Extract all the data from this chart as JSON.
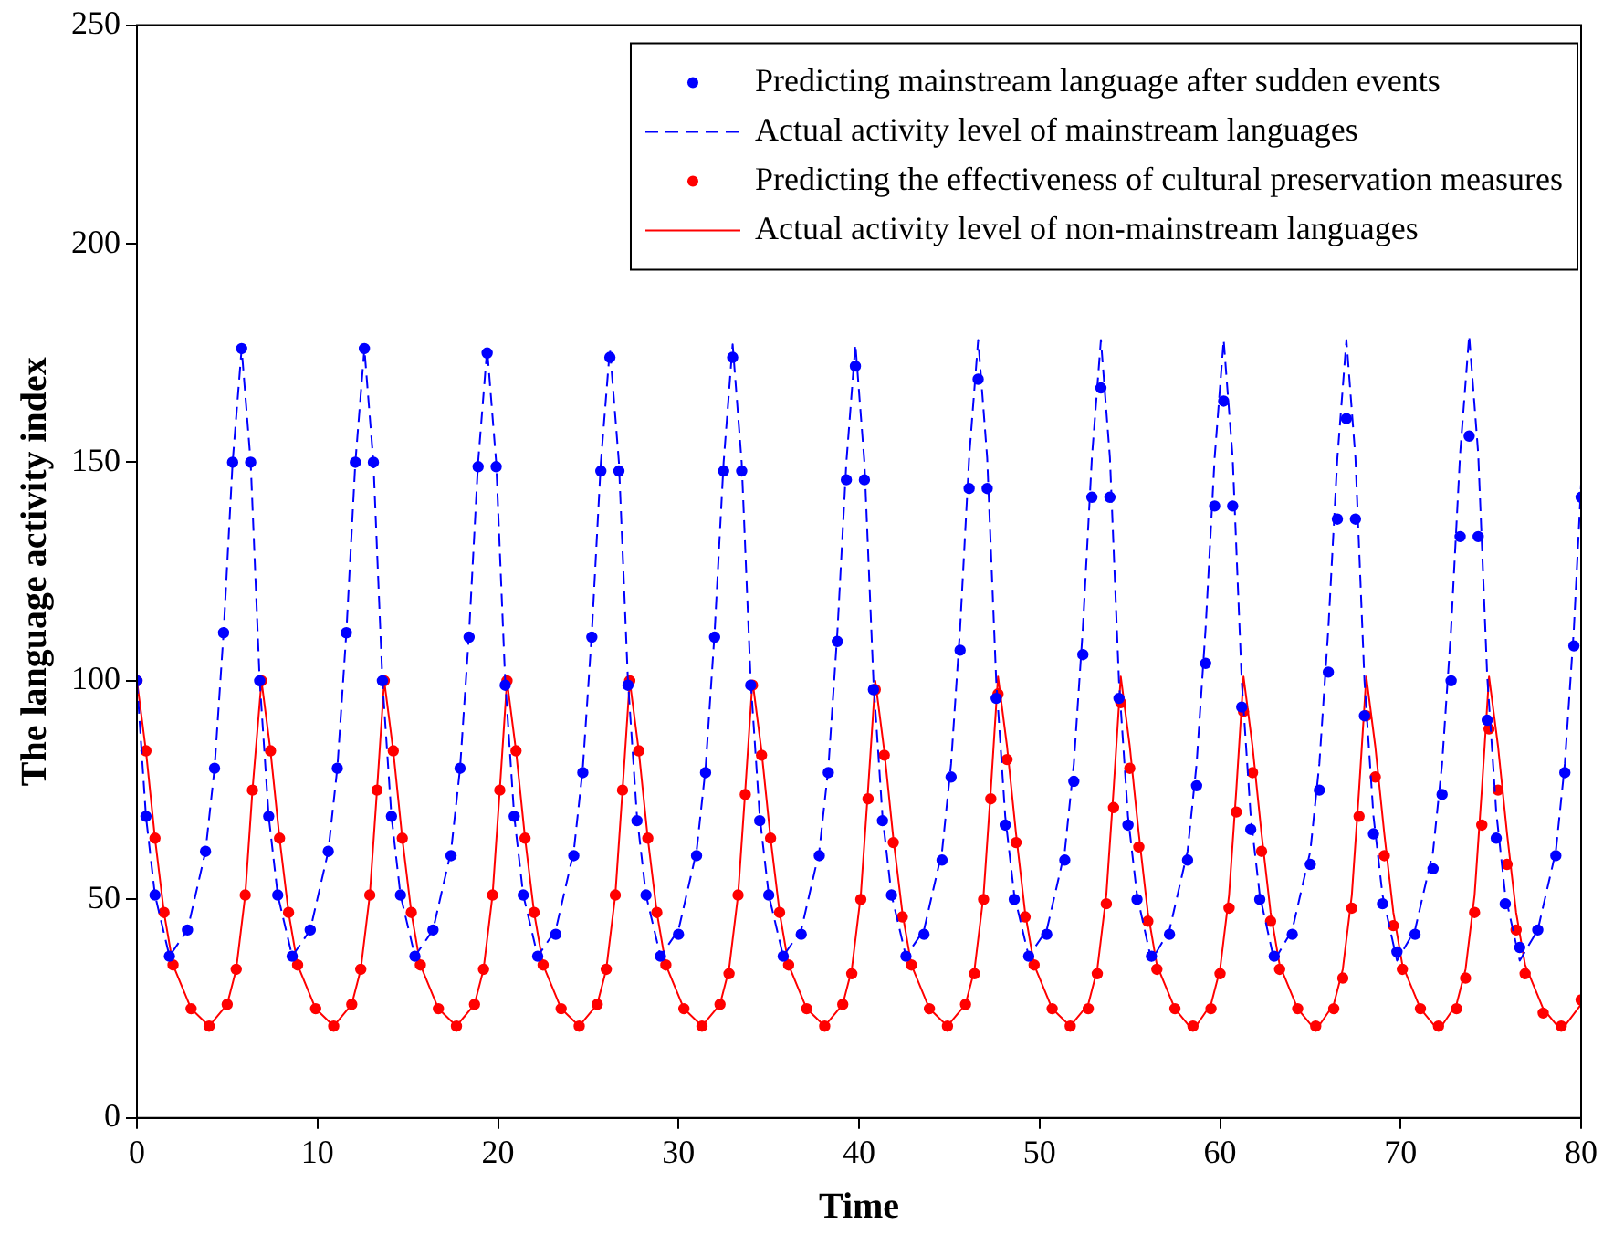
{
  "chart_data": {
    "type": "scatter",
    "xlabel": "Time",
    "ylabel": "The language activity index",
    "xlim": [
      0,
      80
    ],
    "ylim": [
      0,
      250
    ],
    "xticks": [
      0,
      10,
      20,
      30,
      40,
      50,
      60,
      70,
      80
    ],
    "yticks": [
      0,
      50,
      100,
      150,
      200,
      250
    ],
    "grid": false,
    "legend": "top right",
    "series": [
      {
        "name": "Predicting mainstream language after sudden events",
        "marker": "circle",
        "color": "#0000ff",
        "x": [
          0,
          0.5,
          1,
          1.8,
          2.8,
          3.8,
          4.3,
          4.8,
          5.3,
          5.8,
          6.3,
          6.8,
          7.3,
          7.8,
          8.6,
          9.6,
          10.6,
          11.1,
          11.6,
          12.1,
          12.6,
          13.1,
          13.6,
          14.1,
          14.6,
          15.4,
          16.4,
          17.4,
          17.9,
          18.4,
          18.9,
          19.4,
          19.9,
          20.4,
          20.9,
          21.4,
          22.2,
          23.2,
          24.2,
          24.7,
          25.2,
          25.7,
          26.2,
          26.7,
          27.2,
          27.7,
          28.2,
          29,
          30,
          31,
          31.5,
          32,
          32.5,
          33,
          33.5,
          34,
          34.5,
          35,
          35.8,
          36.8,
          37.8,
          38.3,
          38.8,
          39.3,
          39.8,
          40.3,
          40.8,
          41.3,
          41.8,
          42.6,
          43.6,
          44.6,
          45.1,
          45.6,
          46.1,
          46.6,
          47.1,
          47.6,
          48.1,
          48.6,
          49.4,
          50.4,
          51.4,
          51.9,
          52.4,
          52.9,
          53.4,
          53.9,
          54.4,
          54.9,
          55.4,
          56.2,
          57.2,
          58.2,
          58.7,
          59.2,
          59.7,
          60.2,
          60.7,
          61.2,
          61.7,
          62.2,
          63,
          64,
          65,
          65.5,
          66,
          66.5,
          67,
          67.5,
          68,
          68.5,
          69,
          69.8,
          70.8,
          71.8,
          72.3,
          72.8,
          73.3,
          73.8,
          74.3,
          74.8,
          75.3,
          75.8,
          76.6,
          77.6,
          78.6,
          79.1,
          79.6,
          80
        ],
        "values": [
          100,
          69,
          51,
          37,
          43,
          61,
          80,
          111,
          150,
          176,
          150,
          100,
          69,
          51,
          37,
          43,
          61,
          80,
          111,
          150,
          176,
          150,
          100,
          69,
          51,
          37,
          43,
          60,
          80,
          110,
          149,
          175,
          149,
          99,
          69,
          51,
          37,
          42,
          60,
          79,
          110,
          148,
          174,
          148,
          99,
          68,
          51,
          37,
          42,
          60,
          79,
          110,
          148,
          174,
          148,
          99,
          68,
          51,
          37,
          42,
          60,
          79,
          109,
          146,
          172,
          146,
          98,
          68,
          51,
          37,
          42,
          59,
          78,
          107,
          144,
          169,
          144,
          96,
          67,
          50,
          37,
          42,
          59,
          77,
          106,
          142,
          167,
          142,
          96,
          67,
          50,
          37,
          42,
          59,
          76,
          104,
          140,
          164,
          140,
          94,
          66,
          50,
          37,
          42,
          58,
          75,
          102,
          137,
          160,
          137,
          92,
          65,
          49,
          38,
          42,
          57,
          74,
          100,
          133,
          156,
          133,
          91,
          64,
          49,
          39,
          43,
          60,
          79,
          108,
          142
        ]
      },
      {
        "name": "Actual activity level of mainstream languages",
        "type": "line",
        "line_style": "dashed",
        "color": "#0000ff",
        "x": [
          0,
          0.5,
          1,
          1.8,
          2.8,
          3.8,
          4.3,
          4.8,
          5.3,
          5.8,
          6.3,
          6.8,
          7.3,
          7.8,
          8.6,
          9.6,
          10.6,
          11.1,
          11.6,
          12.1,
          12.6,
          13.1,
          13.6,
          14.1,
          14.6,
          15.4,
          16.4,
          17.4,
          17.9,
          18.4,
          18.9,
          19.4,
          19.9,
          20.4,
          20.9,
          21.4,
          22.2,
          23.2,
          24.2,
          24.7,
          25.2,
          25.7,
          26.2,
          26.7,
          27.2,
          27.7,
          28.2,
          29,
          30,
          31,
          31.5,
          32,
          32.5,
          33,
          33.5,
          34,
          34.5,
          35,
          35.8,
          36.8,
          37.8,
          38.3,
          38.8,
          39.3,
          39.8,
          40.3,
          40.8,
          41.3,
          41.8,
          42.6,
          43.6,
          44.6,
          45.1,
          45.6,
          46.1,
          46.6,
          47.1,
          47.6,
          48.1,
          48.6,
          49.4,
          50.4,
          51.4,
          51.9,
          52.4,
          52.9,
          53.4,
          53.9,
          54.4,
          54.9,
          55.4,
          56.2,
          57.2,
          58.2,
          58.7,
          59.2,
          59.7,
          60.2,
          60.7,
          61.2,
          61.7,
          62.2,
          63,
          64,
          65,
          65.5,
          66,
          66.5,
          67,
          67.5,
          68,
          68.5,
          69,
          69.8,
          70.8,
          71.8,
          72.3,
          72.8,
          73.3,
          73.8,
          74.3,
          74.8,
          75.3,
          75.8,
          76.6,
          77.6,
          78.6,
          79.1,
          79.6,
          80
        ],
        "values": [
          100,
          69,
          51,
          37,
          43,
          61,
          80,
          111,
          150,
          176,
          150,
          100,
          69,
          51,
          37,
          43,
          61,
          80,
          111,
          150,
          176,
          150,
          100,
          69,
          51,
          37,
          43,
          61,
          80,
          111,
          150,
          176,
          150,
          100,
          69,
          51,
          37,
          43,
          61,
          80,
          111,
          150,
          176,
          150,
          100,
          69,
          51,
          37,
          43,
          61,
          80,
          111,
          150,
          177,
          150,
          100,
          69,
          51,
          37,
          43,
          61,
          80,
          111,
          150,
          177,
          150,
          100,
          69,
          51,
          37,
          43,
          61,
          81,
          112,
          151,
          178,
          151,
          100,
          69,
          51,
          37,
          43,
          61,
          81,
          112,
          151,
          178,
          151,
          100,
          69,
          51,
          36,
          43,
          61,
          81,
          112,
          151,
          178,
          151,
          100,
          69,
          51,
          36,
          43,
          61,
          81,
          112,
          151,
          178,
          151,
          100,
          69,
          51,
          36,
          43,
          61,
          81,
          112,
          152,
          179,
          152,
          101,
          70,
          51,
          36,
          43,
          61,
          81,
          112,
          145
        ]
      },
      {
        "name": "Predicting the effectiveness of cultural preservation measures",
        "marker": "circle",
        "color": "#ff0000",
        "x": [
          0,
          0.5,
          1,
          1.5,
          2,
          3,
          4,
          5,
          5.5,
          6,
          6.4,
          6.9,
          7.4,
          7.9,
          8.4,
          8.9,
          9.9,
          10.9,
          11.9,
          12.4,
          12.9,
          13.3,
          13.7,
          14.2,
          14.7,
          15.2,
          15.7,
          16.7,
          17.7,
          18.7,
          19.2,
          19.7,
          20.1,
          20.5,
          21,
          21.5,
          22,
          22.5,
          23.5,
          24.5,
          25.5,
          26,
          26.5,
          26.9,
          27.3,
          27.8,
          28.3,
          28.8,
          29.3,
          30.3,
          31.3,
          32.3,
          32.8,
          33.3,
          33.7,
          34.1,
          34.6,
          35.1,
          35.6,
          36.1,
          37.1,
          38.1,
          39.1,
          39.6,
          40.1,
          40.5,
          40.9,
          41.4,
          41.9,
          42.4,
          42.9,
          43.9,
          44.9,
          45.9,
          46.4,
          46.9,
          47.3,
          47.7,
          48.2,
          48.7,
          49.2,
          49.7,
          50.7,
          51.7,
          52.7,
          53.2,
          53.7,
          54.1,
          54.5,
          55,
          55.5,
          56,
          56.5,
          57.5,
          58.5,
          59.5,
          60,
          60.5,
          60.9,
          61.3,
          61.8,
          62.3,
          62.8,
          63.3,
          64.3,
          65.3,
          66.3,
          66.8,
          67.3,
          67.7,
          68.1,
          68.6,
          69.1,
          69.6,
          70.1,
          71.1,
          72.1,
          73.1,
          73.6,
          74.1,
          74.5,
          74.9,
          75.4,
          75.9,
          76.4,
          76.9,
          77.9,
          78.9,
          80
        ],
        "values": [
          100,
          84,
          64,
          47,
          35,
          25,
          21,
          26,
          34,
          51,
          75,
          100,
          84,
          64,
          47,
          35,
          25,
          21,
          26,
          34,
          51,
          75,
          100,
          84,
          64,
          47,
          35,
          25,
          21,
          26,
          34,
          51,
          75,
          100,
          84,
          64,
          47,
          35,
          25,
          21,
          26,
          34,
          51,
          75,
          100,
          84,
          64,
          47,
          35,
          25,
          21,
          26,
          33,
          51,
          74,
          99,
          83,
          64,
          47,
          35,
          25,
          21,
          26,
          33,
          50,
          73,
          98,
          83,
          63,
          46,
          35,
          25,
          21,
          26,
          33,
          50,
          73,
          97,
          82,
          63,
          46,
          35,
          25,
          21,
          25,
          33,
          49,
          71,
          95,
          80,
          62,
          45,
          34,
          25,
          21,
          25,
          33,
          48,
          70,
          93,
          79,
          61,
          45,
          34,
          25,
          21,
          25,
          32,
          48,
          69,
          92,
          78,
          60,
          44,
          34,
          25,
          21,
          25,
          32,
          47,
          67,
          89,
          75,
          58,
          43,
          33,
          24,
          21,
          27
        ]
      },
      {
        "name": "Actual activity level of non-mainstream languages",
        "type": "line",
        "line_style": "solid",
        "color": "#ff0000",
        "x": [
          0,
          0.5,
          1,
          1.5,
          2,
          3,
          4,
          5,
          5.5,
          6,
          6.4,
          6.9,
          7.4,
          7.9,
          8.4,
          8.9,
          9.9,
          10.9,
          11.9,
          12.4,
          12.9,
          13.3,
          13.7,
          14.2,
          14.7,
          15.2,
          15.7,
          16.7,
          17.7,
          18.7,
          19.2,
          19.7,
          20.1,
          20.5,
          21,
          21.5,
          22,
          22.5,
          23.5,
          24.5,
          25.5,
          26,
          26.5,
          26.9,
          27.3,
          27.8,
          28.3,
          28.8,
          29.3,
          30.3,
          31.3,
          32.3,
          32.8,
          33.3,
          33.7,
          34.1,
          34.6,
          35.1,
          35.6,
          36.1,
          37.1,
          38.1,
          39.1,
          39.6,
          40.1,
          40.5,
          40.9,
          41.4,
          41.9,
          42.4,
          42.9,
          43.9,
          44.9,
          45.9,
          46.4,
          46.9,
          47.3,
          47.7,
          48.2,
          48.7,
          49.2,
          49.7,
          50.7,
          51.7,
          52.7,
          53.2,
          53.7,
          54.1,
          54.5,
          55,
          55.5,
          56,
          56.5,
          57.5,
          58.5,
          59.5,
          60,
          60.5,
          60.9,
          61.3,
          61.8,
          62.3,
          62.8,
          63.3,
          64.3,
          65.3,
          66.3,
          66.8,
          67.3,
          67.7,
          68.1,
          68.6,
          69.1,
          69.6,
          70.1,
          71.1,
          72.1,
          73.1,
          73.6,
          74.1,
          74.5,
          74.9,
          75.4,
          75.9,
          76.4,
          76.9,
          77.9,
          78.9,
          80
        ],
        "values": [
          100,
          84,
          64,
          47,
          35,
          25,
          21,
          26,
          34,
          51,
          75,
          100,
          84,
          64,
          47,
          35,
          25,
          21,
          26,
          34,
          51,
          75,
          100,
          84,
          64,
          47,
          35,
          25,
          21,
          26,
          34,
          51,
          75,
          100,
          84,
          64,
          47,
          35,
          25,
          21,
          26,
          34,
          51,
          75,
          100,
          84,
          64,
          47,
          35,
          25,
          21,
          26,
          34,
          51,
          75,
          100,
          84,
          64,
          47,
          35,
          25,
          21,
          26,
          34,
          51,
          75,
          100,
          84,
          64,
          47,
          35,
          25,
          21,
          26,
          34,
          51,
          75,
          101,
          85,
          65,
          47,
          35,
          25,
          21,
          26,
          34,
          51,
          75,
          101,
          85,
          65,
          47,
          35,
          25,
          20,
          26,
          34,
          51,
          75,
          101,
          85,
          65,
          47,
          35,
          25,
          20,
          26,
          34,
          51,
          75,
          101,
          85,
          65,
          47,
          35,
          25,
          20,
          26,
          34,
          51,
          75,
          101,
          85,
          65,
          47,
          35,
          25,
          20,
          26
        ]
      }
    ]
  }
}
